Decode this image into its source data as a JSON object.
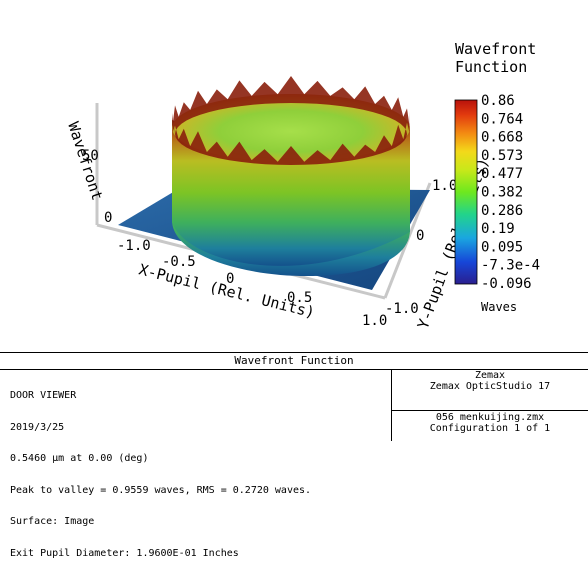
{
  "chart_data": {
    "type": "surface3d",
    "title": "Wavefront Function",
    "xlabel": "X-Pupil (Rel. Units)",
    "ylabel": "Y-Pupil (Rel. Units)",
    "zlabel": "Wavefront",
    "x_ticks": [
      "-1.0",
      "-0.5",
      "0",
      "0.5",
      "1.0"
    ],
    "y_ticks": [
      "-1.0",
      "0",
      "1.0"
    ],
    "z_ticks": [
      "0",
      "50"
    ],
    "colorbar": {
      "ticks": [
        "0.86",
        "0.764",
        "0.668",
        "0.573",
        "0.477",
        "0.382",
        "0.286",
        "0.19",
        "0.095",
        "-7.3e-4",
        "-0.096"
      ],
      "max": 0.86,
      "min": -0.096,
      "units": "Waves"
    },
    "legend_title_line1": "Wavefront",
    "legend_title_line2": "Function"
  },
  "footer": {
    "title": "Wavefront Function",
    "info_lines": [
      "DOOR VIEWER",
      "2019/3/25",
      "0.5460 µm at 0.00 (deg)",
      "Peak to valley = 0.9559 waves, RMS = 0.2720 waves.",
      "Surface: Image",
      "Exit Pupil Diameter: 1.9600E-01 Inches"
    ],
    "company": "Zemax",
    "product": "Zemax OpticStudio 17",
    "file": "056 menkuijing.zmx",
    "configuration": "Configuration 1 of 1"
  }
}
